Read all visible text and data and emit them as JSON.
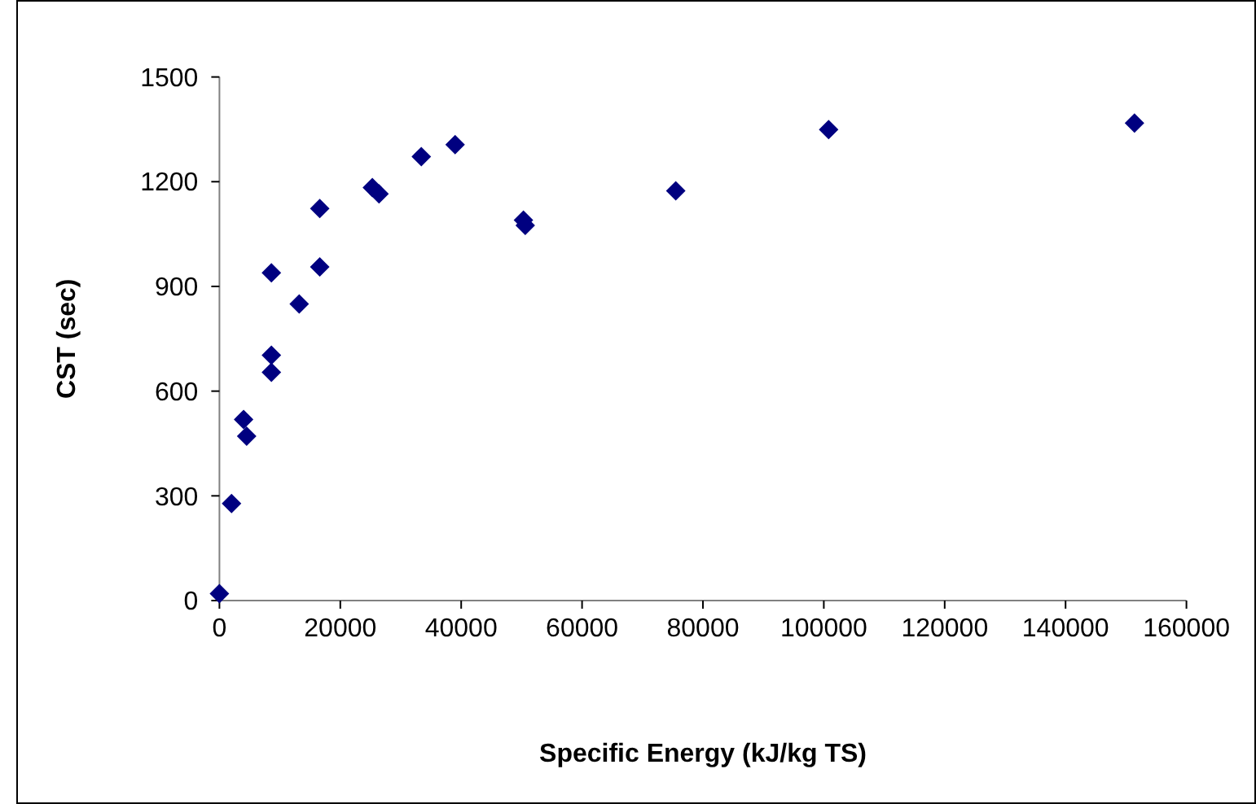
{
  "chart_data": {
    "type": "scatter",
    "xlabel": "Specific Energy (kJ/kg TS)",
    "ylabel": "CST (sec)",
    "marker": "diamond",
    "grid": false,
    "xlim": [
      0,
      160000
    ],
    "xticks": [
      0,
      20000,
      40000,
      60000,
      80000,
      100000,
      120000,
      140000,
      160000
    ],
    "ylim": [
      0,
      1500
    ],
    "yticks": [
      0,
      300,
      600,
      900,
      1200,
      1500
    ],
    "series": [
      {
        "color": "#000080",
        "x": [
          0,
          2000,
          4000,
          4500,
          8600,
          8600,
          8600,
          13200,
          16600,
          16600,
          25300,
          26400,
          33400,
          39000,
          50300,
          50600,
          75500,
          100800,
          151400
        ],
        "values": [
          20,
          278,
          519,
          471,
          703,
          654,
          939,
          850,
          956,
          1123,
          1183,
          1165,
          1272,
          1306,
          1090,
          1075,
          1174,
          1349,
          1368
        ]
      }
    ]
  }
}
